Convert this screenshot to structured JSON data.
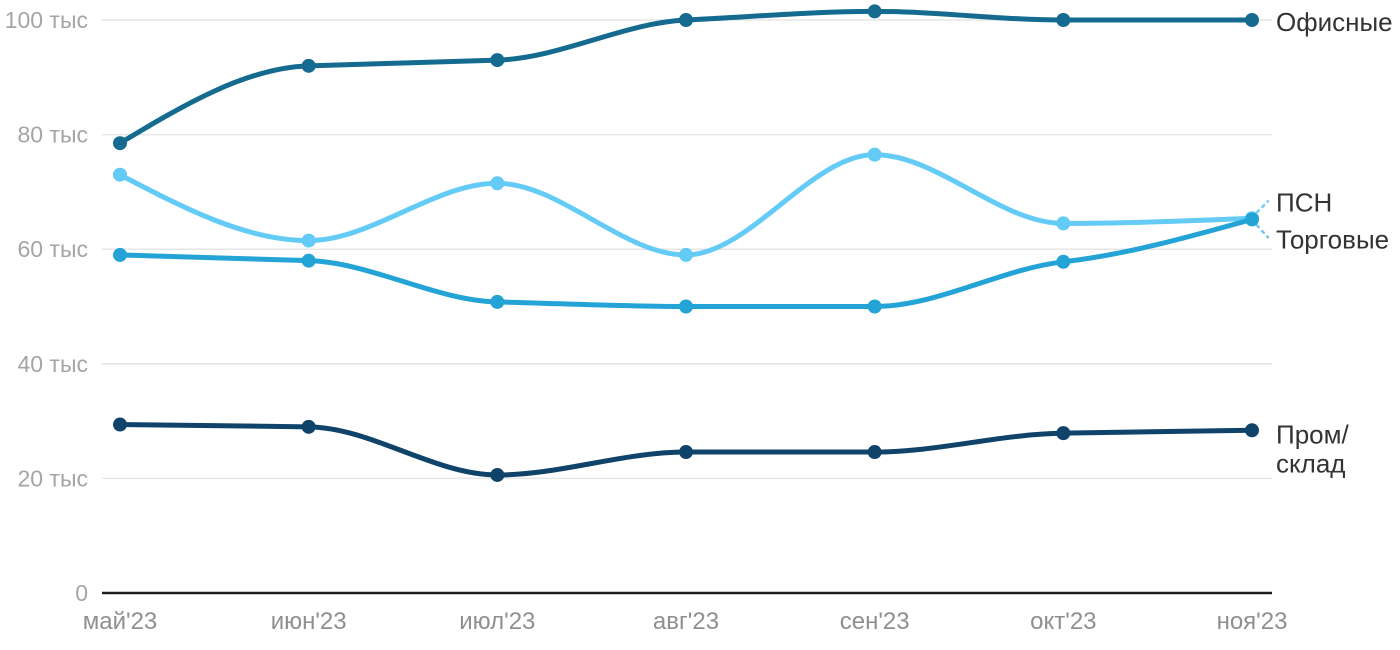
{
  "chart_data": {
    "type": "line",
    "title": "",
    "xlabel": "",
    "ylabel": "",
    "unit": "тыс",
    "x_categories": [
      "май'23",
      "июн'23",
      "июл'23",
      "авг'23",
      "сен'23",
      "окт'23",
      "ноя'23"
    ],
    "y_axis": {
      "tick_values": [
        0,
        20,
        40,
        60,
        80,
        100
      ],
      "tick_labels": [
        "0",
        "20 тыс",
        "40 тыс",
        "60 тыс",
        "80 тыс",
        "100 тыс"
      ],
      "ylim": [
        0,
        100
      ],
      "grid": "horizontal"
    },
    "legend_position": "right-of-line-ends",
    "series": [
      {
        "name": "Офисные",
        "color": "#156a8f",
        "values": [
          78.5,
          92,
          93,
          100,
          101.5,
          100,
          100
        ],
        "label_lines": [
          "Офисные"
        ],
        "label_dy": 11,
        "leader": "none"
      },
      {
        "name": "ПСН",
        "color": "#63cbf5",
        "values": [
          73,
          61.5,
          71.5,
          59,
          76.5,
          64.5,
          65.4
        ],
        "label_lines": [
          "ПСН"
        ],
        "label_dy": -7,
        "leader": "up"
      },
      {
        "name": "Торговые",
        "color": "#24a3d6",
        "values": [
          59,
          58,
          50.8,
          50,
          50,
          57.8,
          65.2
        ],
        "label_lines": [
          "Торговые"
        ],
        "label_dy": 29,
        "leader": "down"
      },
      {
        "name": "Пром/склад",
        "color": "#10436a",
        "values": [
          29.4,
          29,
          20.6,
          24.6,
          24.6,
          27.9,
          28.4
        ],
        "label_lines": [
          "Пром/",
          "склад"
        ],
        "label_dy": 13,
        "leader": "none"
      }
    ],
    "colors": {
      "grid_line": "#e6e6e6",
      "axis_line": "#1d1d1d",
      "y_tick_text": "#a5a5a5",
      "x_tick_text": "#8f8f8f",
      "series_label_text": "#333333"
    }
  }
}
